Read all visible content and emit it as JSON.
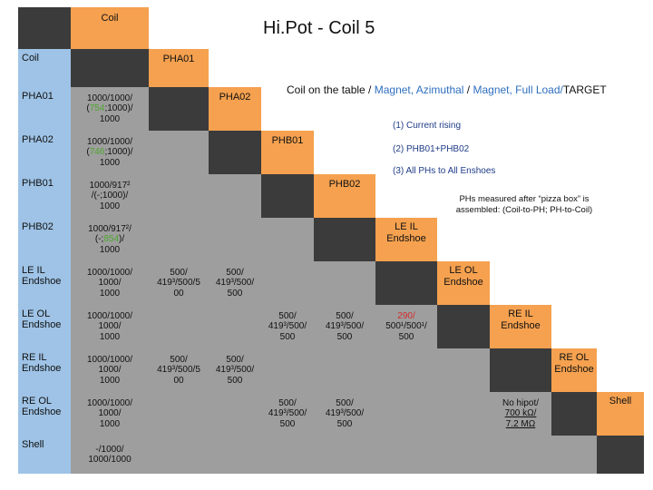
{
  "title": "Hi.Pot - Coil 5",
  "subtitle": {
    "part1": "Coil on the table / ",
    "part2": "Magnet, Azimuthal",
    "part3": " / ",
    "part4": "Magnet, Full Load/",
    "part5": "TARGET"
  },
  "legend": [
    "(1) Current rising",
    "(2) PHB01+PHB02",
    "(3) All PHs to All Enshoes"
  ],
  "note": "PHs measured after “pizza box” is assembled: (Coil-to-PH; PH-to-Coil)",
  "top_header": "Coil",
  "row_labels": [
    "Coil",
    "PHA01",
    "PHA02",
    "PHB01",
    "PHB02",
    "LE IL Endshoe",
    "LE OL Endshoe",
    "RE IL Endshoe",
    "RE OL Endshoe",
    "Shell"
  ],
  "diag_labels": [
    "PHA01",
    "PHA02",
    "PHB01",
    "PHB02",
    "LE IL Endshoe",
    "LE OL Endshoe",
    "RE IL Endshoe",
    "RE OL Endshoe",
    "Shell"
  ],
  "col1": {
    "pha01": [
      "1000/1000/",
      "(754;1000)/",
      "1000"
    ],
    "pha02": [
      "1000/1000/",
      "(746;1000)/",
      "1000"
    ],
    "phb01": [
      "1000/917²",
      "/(-;1000)/",
      "1000"
    ],
    "phb02": [
      "1000/917²/",
      "(-;854)/",
      "1000"
    ],
    "leil": [
      "1000/1000/",
      "1000/",
      "1000"
    ],
    "leol": [
      "1000/1000/",
      "1000/",
      "1000"
    ],
    "reil": [
      "1000/1000/",
      "1000/",
      "1000"
    ],
    "reol": [
      "1000/1000/",
      "1000/",
      "1000"
    ],
    "shell": [
      "-/1000/",
      "1000/1000"
    ]
  },
  "green_values": {
    "pha01": "754",
    "pha02": "746",
    "phb02": "854"
  },
  "ph_endshoe": {
    "leil_pha01": [
      "500/",
      "419³/500/5",
      "00"
    ],
    "leil_pha02": [
      "500/",
      "419³/500/",
      "500"
    ],
    "leol_phb01": [
      "500/",
      "419³/500/",
      "500"
    ],
    "leol_phb02": [
      "500/",
      "419³/500/",
      "500"
    ],
    "leol_leil": [
      "290/",
      "500¹/500¹/",
      "500"
    ],
    "reil_pha01": [
      "500/",
      "419³/500/5",
      "00"
    ],
    "reil_pha02": [
      "500/",
      "419³/500/",
      "500"
    ],
    "reol_phb01": [
      "500/",
      "419³/500/",
      "500"
    ],
    "reol_phb02": [
      "500/",
      "419³/500/",
      "500"
    ],
    "shell_reol": [
      "No hipot/",
      "700 kΩ/",
      "7.2 MΩ"
    ]
  }
}
